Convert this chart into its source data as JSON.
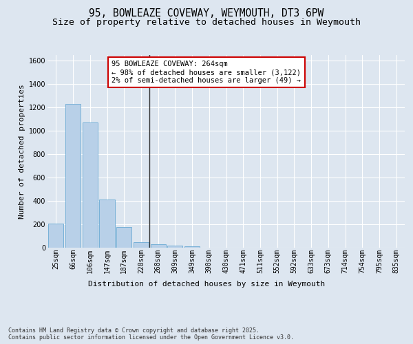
{
  "title": "95, BOWLEAZE COVEWAY, WEYMOUTH, DT3 6PW",
  "subtitle": "Size of property relative to detached houses in Weymouth",
  "xlabel": "Distribution of detached houses by size in Weymouth",
  "ylabel": "Number of detached properties",
  "categories": [
    "25sqm",
    "66sqm",
    "106sqm",
    "147sqm",
    "187sqm",
    "228sqm",
    "268sqm",
    "309sqm",
    "349sqm",
    "390sqm",
    "430sqm",
    "471sqm",
    "511sqm",
    "552sqm",
    "592sqm",
    "633sqm",
    "673sqm",
    "714sqm",
    "754sqm",
    "795sqm",
    "835sqm"
  ],
  "values": [
    205,
    1230,
    1075,
    415,
    178,
    45,
    27,
    18,
    10,
    0,
    0,
    0,
    0,
    0,
    0,
    0,
    0,
    0,
    0,
    0,
    0
  ],
  "bar_color": "#b8d0e8",
  "bar_edge_color": "#6aaad4",
  "highlight_index": 6,
  "highlight_line_color": "#333333",
  "annotation_text": "95 BOWLEAZE COVEWAY: 264sqm\n← 98% of detached houses are smaller (3,122)\n2% of semi-detached houses are larger (49) →",
  "annotation_box_color": "#ffffff",
  "annotation_box_edge_color": "#cc0000",
  "ylim": [
    0,
    1650
  ],
  "yticks": [
    0,
    200,
    400,
    600,
    800,
    1000,
    1200,
    1400,
    1600
  ],
  "background_color": "#dde6f0",
  "plot_bg_color": "#dde6f0",
  "grid_color": "#ffffff",
  "footnote": "Contains HM Land Registry data © Crown copyright and database right 2025.\nContains public sector information licensed under the Open Government Licence v3.0.",
  "title_fontsize": 10.5,
  "subtitle_fontsize": 9.5,
  "axis_label_fontsize": 8,
  "tick_fontsize": 7,
  "annotation_fontsize": 7.5,
  "footnote_fontsize": 6
}
